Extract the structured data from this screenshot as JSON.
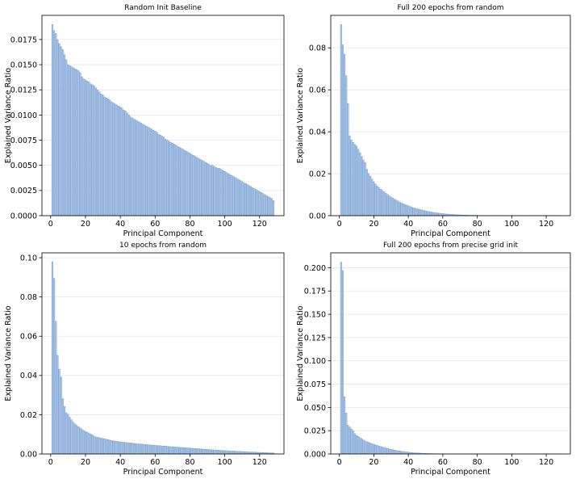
{
  "chart_data": [
    {
      "type": "bar",
      "title": "Random Init Baseline",
      "xlabel": "Principal Component",
      "ylabel": "Explained Variance Ratio",
      "xlim": [
        -5,
        134
      ],
      "ylim": [
        0,
        0.0199
      ],
      "xticks": [
        "0",
        "20",
        "40",
        "60",
        "80",
        "100",
        "120"
      ],
      "yticks": [
        "0.0000",
        "0.0025",
        "0.0050",
        "0.0075",
        "0.0100",
        "0.0125",
        "0.0150",
        "0.0175"
      ],
      "ytick_values": [
        0,
        0.0025,
        0.005,
        0.0075,
        0.01,
        0.0125,
        0.015,
        0.0175
      ],
      "grid": "horizontal",
      "bar_color": "#aec7e8",
      "x": [
        1,
        2,
        3,
        4,
        5,
        6,
        7,
        8,
        9,
        10,
        11,
        12,
        13,
        14,
        15,
        16,
        17,
        18,
        19,
        20,
        21,
        22,
        23,
        24,
        25,
        26,
        27,
        28,
        29,
        30,
        31,
        32,
        33,
        34,
        35,
        36,
        37,
        38,
        39,
        40,
        41,
        42,
        43,
        44,
        45,
        46,
        47,
        48,
        49,
        50,
        51,
        52,
        53,
        54,
        55,
        56,
        57,
        58,
        59,
        60,
        61,
        62,
        63,
        64,
        65,
        66,
        67,
        68,
        69,
        70,
        71,
        72,
        73,
        74,
        75,
        76,
        77,
        78,
        79,
        80,
        81,
        82,
        83,
        84,
        85,
        86,
        87,
        88,
        89,
        90,
        91,
        92,
        93,
        94,
        95,
        96,
        97,
        98,
        99,
        100,
        101,
        102,
        103,
        104,
        105,
        106,
        107,
        108,
        109,
        110,
        111,
        112,
        113,
        114,
        115,
        116,
        117,
        118,
        119,
        120,
        121,
        122,
        123,
        124,
        125,
        126,
        127,
        128
      ],
      "values": [
        0.019,
        0.0184,
        0.0181,
        0.0175,
        0.0171,
        0.0168,
        0.0165,
        0.016,
        0.0155,
        0.015,
        0.0149,
        0.0148,
        0.0147,
        0.0146,
        0.0145,
        0.0144,
        0.0142,
        0.0138,
        0.0136,
        0.0135,
        0.0134,
        0.0133,
        0.0131,
        0.013,
        0.0129,
        0.0127,
        0.0125,
        0.0123,
        0.0121,
        0.012,
        0.0118,
        0.0117,
        0.0116,
        0.0115,
        0.0113,
        0.0112,
        0.0111,
        0.011,
        0.0109,
        0.0108,
        0.0107,
        0.0105,
        0.0104,
        0.0102,
        0.01,
        0.0098,
        0.0097,
        0.0096,
        0.0095,
        0.0094,
        0.0093,
        0.0092,
        0.0091,
        0.009,
        0.0089,
        0.0088,
        0.0087,
        0.0086,
        0.0085,
        0.0084,
        0.0083,
        0.0081,
        0.008,
        0.0079,
        0.0078,
        0.0076,
        0.0075,
        0.0074,
        0.0073,
        0.0072,
        0.0071,
        0.007,
        0.0069,
        0.0068,
        0.0067,
        0.0066,
        0.0065,
        0.0064,
        0.0063,
        0.0062,
        0.0061,
        0.006,
        0.0059,
        0.0058,
        0.0057,
        0.0056,
        0.0055,
        0.0054,
        0.0053,
        0.0052,
        0.0051,
        0.005,
        0.005,
        0.0049,
        0.0048,
        0.0047,
        0.0047,
        0.0046,
        0.0045,
        0.0044,
        0.0043,
        0.0042,
        0.0041,
        0.004,
        0.0039,
        0.0038,
        0.0037,
        0.0036,
        0.0035,
        0.0034,
        0.0033,
        0.0032,
        0.0031,
        0.003,
        0.0029,
        0.0028,
        0.0027,
        0.0026,
        0.0025,
        0.0024,
        0.0023,
        0.0022,
        0.0021,
        0.002,
        0.0019,
        0.0018,
        0.0017,
        0.0015
      ]
    },
    {
      "type": "bar",
      "title": "Full 200 epochs from random",
      "xlabel": "Principal Component",
      "ylabel": "Explained Variance Ratio",
      "xlim": [
        -5,
        134
      ],
      "ylim": [
        0,
        0.0955
      ],
      "xticks": [
        "0",
        "20",
        "40",
        "60",
        "80",
        "100",
        "120"
      ],
      "yticks": [
        "0.00",
        "0.02",
        "0.04",
        "0.06",
        "0.08"
      ],
      "ytick_values": [
        0,
        0.02,
        0.04,
        0.06,
        0.08
      ],
      "grid": "horizontal",
      "bar_color": "#aec7e8",
      "x": [
        1,
        2,
        3,
        4,
        5,
        6,
        7,
        8,
        9,
        10,
        11,
        12,
        13,
        14,
        15,
        16,
        17,
        18,
        19,
        20,
        21,
        22,
        23,
        24,
        25,
        26,
        27,
        28,
        29,
        30,
        31,
        32,
        33,
        34,
        35,
        36,
        37,
        38,
        39,
        40,
        41,
        42,
        43,
        44,
        45,
        46,
        47,
        48,
        49,
        50,
        51,
        52,
        53,
        54,
        55,
        56,
        57,
        58,
        59,
        60,
        61,
        62,
        63,
        64,
        65,
        66,
        67,
        68,
        69,
        70,
        71,
        72,
        73,
        74,
        75,
        76,
        77,
        78,
        79,
        80,
        81,
        82,
        83,
        84,
        85,
        86,
        87,
        88,
        89,
        90,
        91,
        92,
        93,
        94,
        95,
        96,
        97,
        98,
        99,
        100,
        101,
        102,
        103,
        104,
        105,
        106,
        107,
        108,
        109,
        110,
        111,
        112,
        113,
        114,
        115,
        116,
        117,
        118,
        119,
        120,
        121,
        122,
        123,
        124,
        125,
        126,
        127,
        128
      ],
      "values": [
        0.0912,
        0.0815,
        0.077,
        0.0668,
        0.0535,
        0.038,
        0.0361,
        0.035,
        0.034,
        0.0332,
        0.0317,
        0.03,
        0.0282,
        0.0266,
        0.0253,
        0.0221,
        0.0201,
        0.0189,
        0.0174,
        0.0162,
        0.0151,
        0.0142,
        0.0134,
        0.0126,
        0.012,
        0.0114,
        0.0107,
        0.0101,
        0.0094,
        0.0089,
        0.0084,
        0.0079,
        0.0074,
        0.007,
        0.0065,
        0.0061,
        0.0057,
        0.0054,
        0.005,
        0.0047,
        0.0044,
        0.0041,
        0.0038,
        0.0036,
        0.0033,
        0.0031,
        0.0029,
        0.0027,
        0.0025,
        0.0023,
        0.0021,
        0.002,
        0.0018,
        0.0017,
        0.0015,
        0.0014,
        0.0013,
        0.0012,
        0.0011,
        0.001,
        0.0009,
        0.0008,
        0.0008,
        0.0007,
        0.0006,
        0.0006,
        0.0005,
        0.0005,
        0.0004,
        0.0004,
        0.0004,
        0.0003,
        0.0003,
        0.0003,
        0.0002,
        0.0002,
        0.0002,
        0.0002,
        0.0002,
        0.0001,
        0.0001,
        0.0001,
        0.0001,
        0.0001,
        0.0001,
        0.0001,
        0.0001,
        0.0001,
        0.0001,
        0.0001,
        0.0001,
        0.0001,
        0.0001,
        0.0001,
        0.0001,
        0.0001,
        0.0001,
        0.0001,
        0.0001,
        0.0001,
        0.0001,
        0.0001,
        0.0001,
        0.0001,
        0.0001,
        0.0001,
        0.0001,
        0.0001,
        0.0001,
        0.0001,
        0.0001,
        0.0001,
        0.0001,
        0.0001,
        0.0001,
        0.0001,
        0.0001,
        0.0001,
        0.0001,
        0.0001,
        0.0001,
        0.0001,
        0.0001,
        0.0001,
        0.0001,
        0.0001,
        0.0001,
        0.0001
      ]
    },
    {
      "type": "bar",
      "title": "10 epochs from random",
      "xlabel": "Principal Component",
      "ylabel": "Explained Variance Ratio",
      "xlim": [
        -5,
        134
      ],
      "ylim": [
        0,
        0.1025
      ],
      "xticks": [
        "0",
        "20",
        "40",
        "60",
        "80",
        "100",
        "120"
      ],
      "yticks": [
        "0.00",
        "0.02",
        "0.04",
        "0.06",
        "0.08",
        "0.10"
      ],
      "ytick_values": [
        0,
        0.02,
        0.04,
        0.06,
        0.08,
        0.1
      ],
      "grid": "horizontal",
      "bar_color": "#aec7e8",
      "x": [
        1,
        2,
        3,
        4,
        5,
        6,
        7,
        8,
        9,
        10,
        11,
        12,
        13,
        14,
        15,
        16,
        17,
        18,
        19,
        20,
        21,
        22,
        23,
        24,
        25,
        26,
        27,
        28,
        29,
        30,
        31,
        32,
        33,
        34,
        35,
        36,
        37,
        38,
        39,
        40,
        41,
        42,
        43,
        44,
        45,
        46,
        47,
        48,
        49,
        50,
        51,
        52,
        53,
        54,
        55,
        56,
        57,
        58,
        59,
        60,
        61,
        62,
        63,
        64,
        65,
        66,
        67,
        68,
        69,
        70,
        71,
        72,
        73,
        74,
        75,
        76,
        77,
        78,
        79,
        80,
        81,
        82,
        83,
        84,
        85,
        86,
        87,
        88,
        89,
        90,
        91,
        92,
        93,
        94,
        95,
        96,
        97,
        98,
        99,
        100,
        101,
        102,
        103,
        104,
        105,
        106,
        107,
        108,
        109,
        110,
        111,
        112,
        113,
        114,
        115,
        116,
        117,
        118,
        119,
        120,
        121,
        122,
        123,
        124,
        125,
        126,
        127,
        128
      ],
      "values": [
        0.098,
        0.0895,
        0.0677,
        0.0503,
        0.0432,
        0.0392,
        0.0282,
        0.0242,
        0.0211,
        0.0203,
        0.0187,
        0.0174,
        0.0162,
        0.0153,
        0.0146,
        0.0139,
        0.0133,
        0.0126,
        0.012,
        0.0115,
        0.0111,
        0.0107,
        0.0102,
        0.0097,
        0.0091,
        0.0087,
        0.0085,
        0.0083,
        0.0081,
        0.0079,
        0.0077,
        0.0075,
        0.0073,
        0.0071,
        0.0069,
        0.0067,
        0.0066,
        0.0064,
        0.0063,
        0.0062,
        0.0061,
        0.006,
        0.0059,
        0.0058,
        0.0057,
        0.0056,
        0.0055,
        0.0054,
        0.0053,
        0.0052,
        0.0051,
        0.005,
        0.005,
        0.0049,
        0.0048,
        0.0047,
        0.0046,
        0.0045,
        0.0045,
        0.0044,
        0.0043,
        0.0042,
        0.0042,
        0.0041,
        0.004,
        0.004,
        0.0039,
        0.0038,
        0.0037,
        0.0037,
        0.0036,
        0.0035,
        0.0035,
        0.0034,
        0.0033,
        0.0033,
        0.0032,
        0.0031,
        0.0031,
        0.003,
        0.0029,
        0.0029,
        0.0028,
        0.0027,
        0.0027,
        0.0026,
        0.0025,
        0.0025,
        0.0024,
        0.0023,
        0.0023,
        0.0022,
        0.0021,
        0.0021,
        0.002,
        0.002,
        0.0019,
        0.0018,
        0.0018,
        0.0017,
        0.0017,
        0.0016,
        0.0016,
        0.0015,
        0.0015,
        0.0014,
        0.0014,
        0.0013,
        0.0013,
        0.0012,
        0.0012,
        0.0011,
        0.0011,
        0.001,
        0.001,
        0.001,
        0.0009,
        0.0009,
        0.0008,
        0.0008,
        0.0008,
        0.0007,
        0.0007,
        0.0007,
        0.0006,
        0.0006,
        0.0005,
        0.0005
      ]
    },
    {
      "type": "bar",
      "title": "Full 200 epochs from precise grid init",
      "xlabel": "Principal Component",
      "ylabel": "Explained Variance Ratio",
      "xlim": [
        -5,
        134
      ],
      "ylim": [
        0,
        0.216
      ],
      "xticks": [
        "0",
        "20",
        "40",
        "60",
        "80",
        "100",
        "120"
      ],
      "yticks": [
        "0.000",
        "0.025",
        "0.050",
        "0.075",
        "0.100",
        "0.125",
        "0.150",
        "0.175",
        "0.200"
      ],
      "ytick_values": [
        0,
        0.025,
        0.05,
        0.075,
        0.1,
        0.125,
        0.15,
        0.175,
        0.2
      ],
      "grid": "horizontal",
      "bar_color": "#aec7e8",
      "x": [
        1,
        2,
        3,
        4,
        5,
        6,
        7,
        8,
        9,
        10,
        11,
        12,
        13,
        14,
        15,
        16,
        17,
        18,
        19,
        20,
        21,
        22,
        23,
        24,
        25,
        26,
        27,
        28,
        29,
        30,
        31,
        32,
        33,
        34,
        35,
        36,
        37,
        38,
        39,
        40,
        41,
        42,
        43,
        44,
        45,
        46,
        47,
        48,
        49,
        50,
        51,
        52,
        53,
        54,
        55,
        56,
        57,
        58,
        59,
        60,
        61,
        62,
        63,
        64,
        65,
        66,
        67,
        68,
        69,
        70,
        71,
        72,
        73,
        74,
        75,
        76,
        77,
        78,
        79,
        80,
        81,
        82,
        83,
        84,
        85,
        86,
        87,
        88,
        89,
        90,
        91,
        92,
        93,
        94,
        95,
        96,
        97,
        98,
        99,
        100,
        101,
        102,
        103,
        104,
        105,
        106,
        107,
        108,
        109,
        110,
        111,
        112,
        113,
        114,
        115,
        116,
        117,
        118,
        119,
        120,
        121,
        122,
        123,
        124,
        125,
        126,
        127,
        128
      ],
      "values": [
        0.206,
        0.197,
        0.0615,
        0.044,
        0.031,
        0.029,
        0.027,
        0.025,
        0.022,
        0.02,
        0.019,
        0.0175,
        0.0165,
        0.015,
        0.014,
        0.0132,
        0.0125,
        0.0118,
        0.0112,
        0.0105,
        0.0098,
        0.0092,
        0.0086,
        0.008,
        0.0075,
        0.007,
        0.0065,
        0.006,
        0.0055,
        0.005,
        0.0046,
        0.0042,
        0.0038,
        0.0035,
        0.0032,
        0.0029,
        0.0026,
        0.0023,
        0.0021,
        0.0019,
        0.0017,
        0.0015,
        0.0013,
        0.0012,
        0.0011,
        0.001,
        0.0009,
        0.0008,
        0.0007,
        0.0006,
        0.0005,
        0.0005,
        0.0004,
        0.0004,
        0.0003,
        0.0003,
        0.0003,
        0.0002,
        0.0002,
        0.0002,
        0.0002,
        0.0001,
        0.0001,
        0.0001,
        0.0001,
        0.0001,
        0.0001,
        0.0001,
        0.0001,
        0.0001,
        0.0001,
        0.0001,
        0.0001,
        0.0001,
        0.0001,
        0.0001,
        0.0001,
        0.0001,
        0.0001,
        0.0001,
        0.0001,
        0.0001,
        0.0001,
        0.0001,
        0.0001,
        0.0001,
        0.0001,
        0.0001,
        0.0001,
        0.0001,
        0.0001,
        0.0001,
        0.0001,
        0.0001,
        0.0001,
        0.0001,
        0.0001,
        0.0001,
        0.0001,
        0.0001,
        0.0001,
        0.0001,
        0.0001,
        0.0001,
        0.0001,
        0.0001,
        0.0001,
        0.0001,
        0.0001,
        0.0001,
        0.0001,
        0.0001,
        0.0001,
        0.0001,
        0.0001,
        0.0001,
        0.0001,
        0.0001,
        0.0001,
        0.0001,
        0.0001,
        0.0001,
        0.0001,
        0.0001,
        0.0001,
        0.0001,
        0.0001,
        0.0001
      ]
    }
  ]
}
